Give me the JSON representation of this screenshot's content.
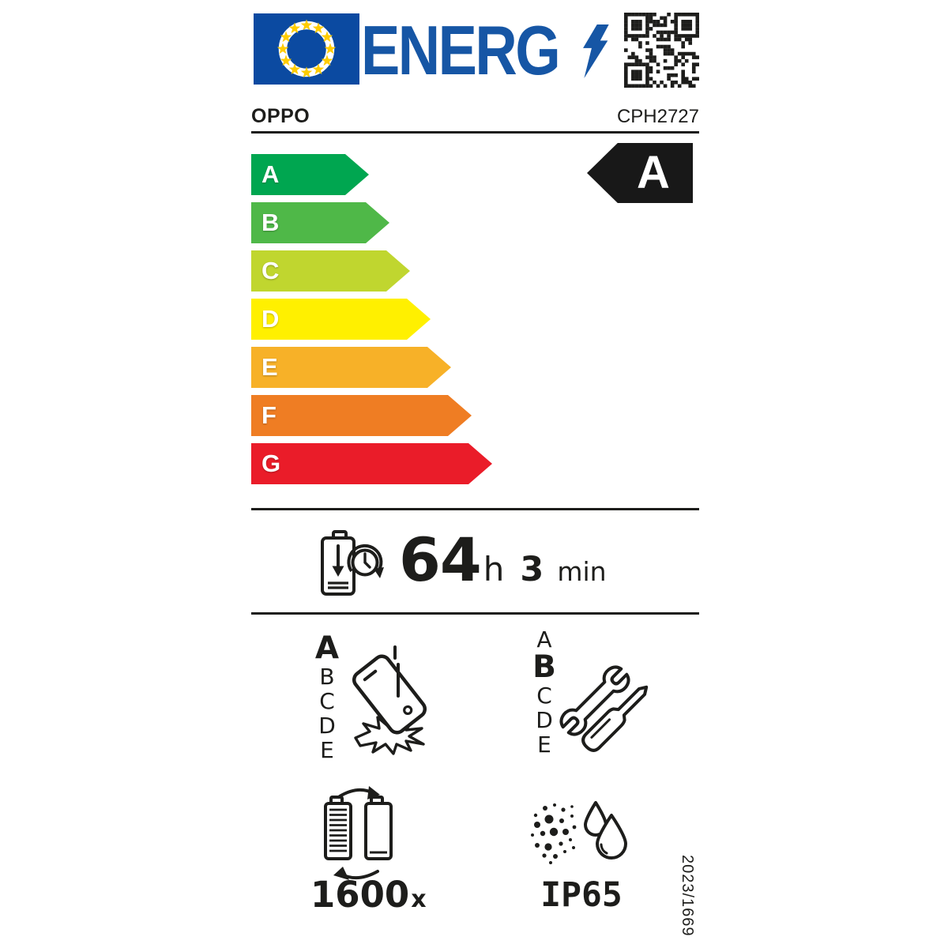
{
  "colors": {
    "ink": "#1d1d1b",
    "flag_blue": "#0B4AA1",
    "energ_blue": "#1656A5",
    "star_yellow": "#FFCC00",
    "rating_bg": "#181818"
  },
  "header": {
    "logo_text": "ENERG",
    "brand": "OPPO",
    "model": "CPH2727"
  },
  "icons": {
    "flag": "eu-flag",
    "lightning": "lightning-bolt-icon",
    "qr": "qr-code",
    "battery_clock": "battery-discharge-clock-icon",
    "phone_drop": "phone-free-fall-icon",
    "tools": "wrench-screwdriver-icon",
    "battery_cycles": "battery-recharge-cycles-icon",
    "dust_water": "dust-and-water-drops-icon"
  },
  "energy_scale": {
    "classes": [
      {
        "label": "A",
        "color": "#00A650"
      },
      {
        "label": "B",
        "color": "#4FB848"
      },
      {
        "label": "C",
        "color": "#C0D62F"
      },
      {
        "label": "D",
        "color": "#FFF000"
      },
      {
        "label": "E",
        "color": "#F7B128"
      },
      {
        "label": "F",
        "color": "#EF7D23"
      },
      {
        "label": "G",
        "color": "#EA1C29"
      }
    ],
    "rating": "A"
  },
  "battery_endurance": {
    "hours": "64",
    "hours_unit": "h",
    "minutes": "3",
    "minutes_unit": "min"
  },
  "freefall_class": {
    "options": [
      "A",
      "B",
      "C",
      "D",
      "E"
    ],
    "selected": "A"
  },
  "repairability_class": {
    "options": [
      "A",
      "B",
      "C",
      "D",
      "E"
    ],
    "selected": "B"
  },
  "battery_cycles": {
    "value": "1600",
    "unit": "x"
  },
  "ip_rating": "IP65",
  "regulation": "2023/1669"
}
